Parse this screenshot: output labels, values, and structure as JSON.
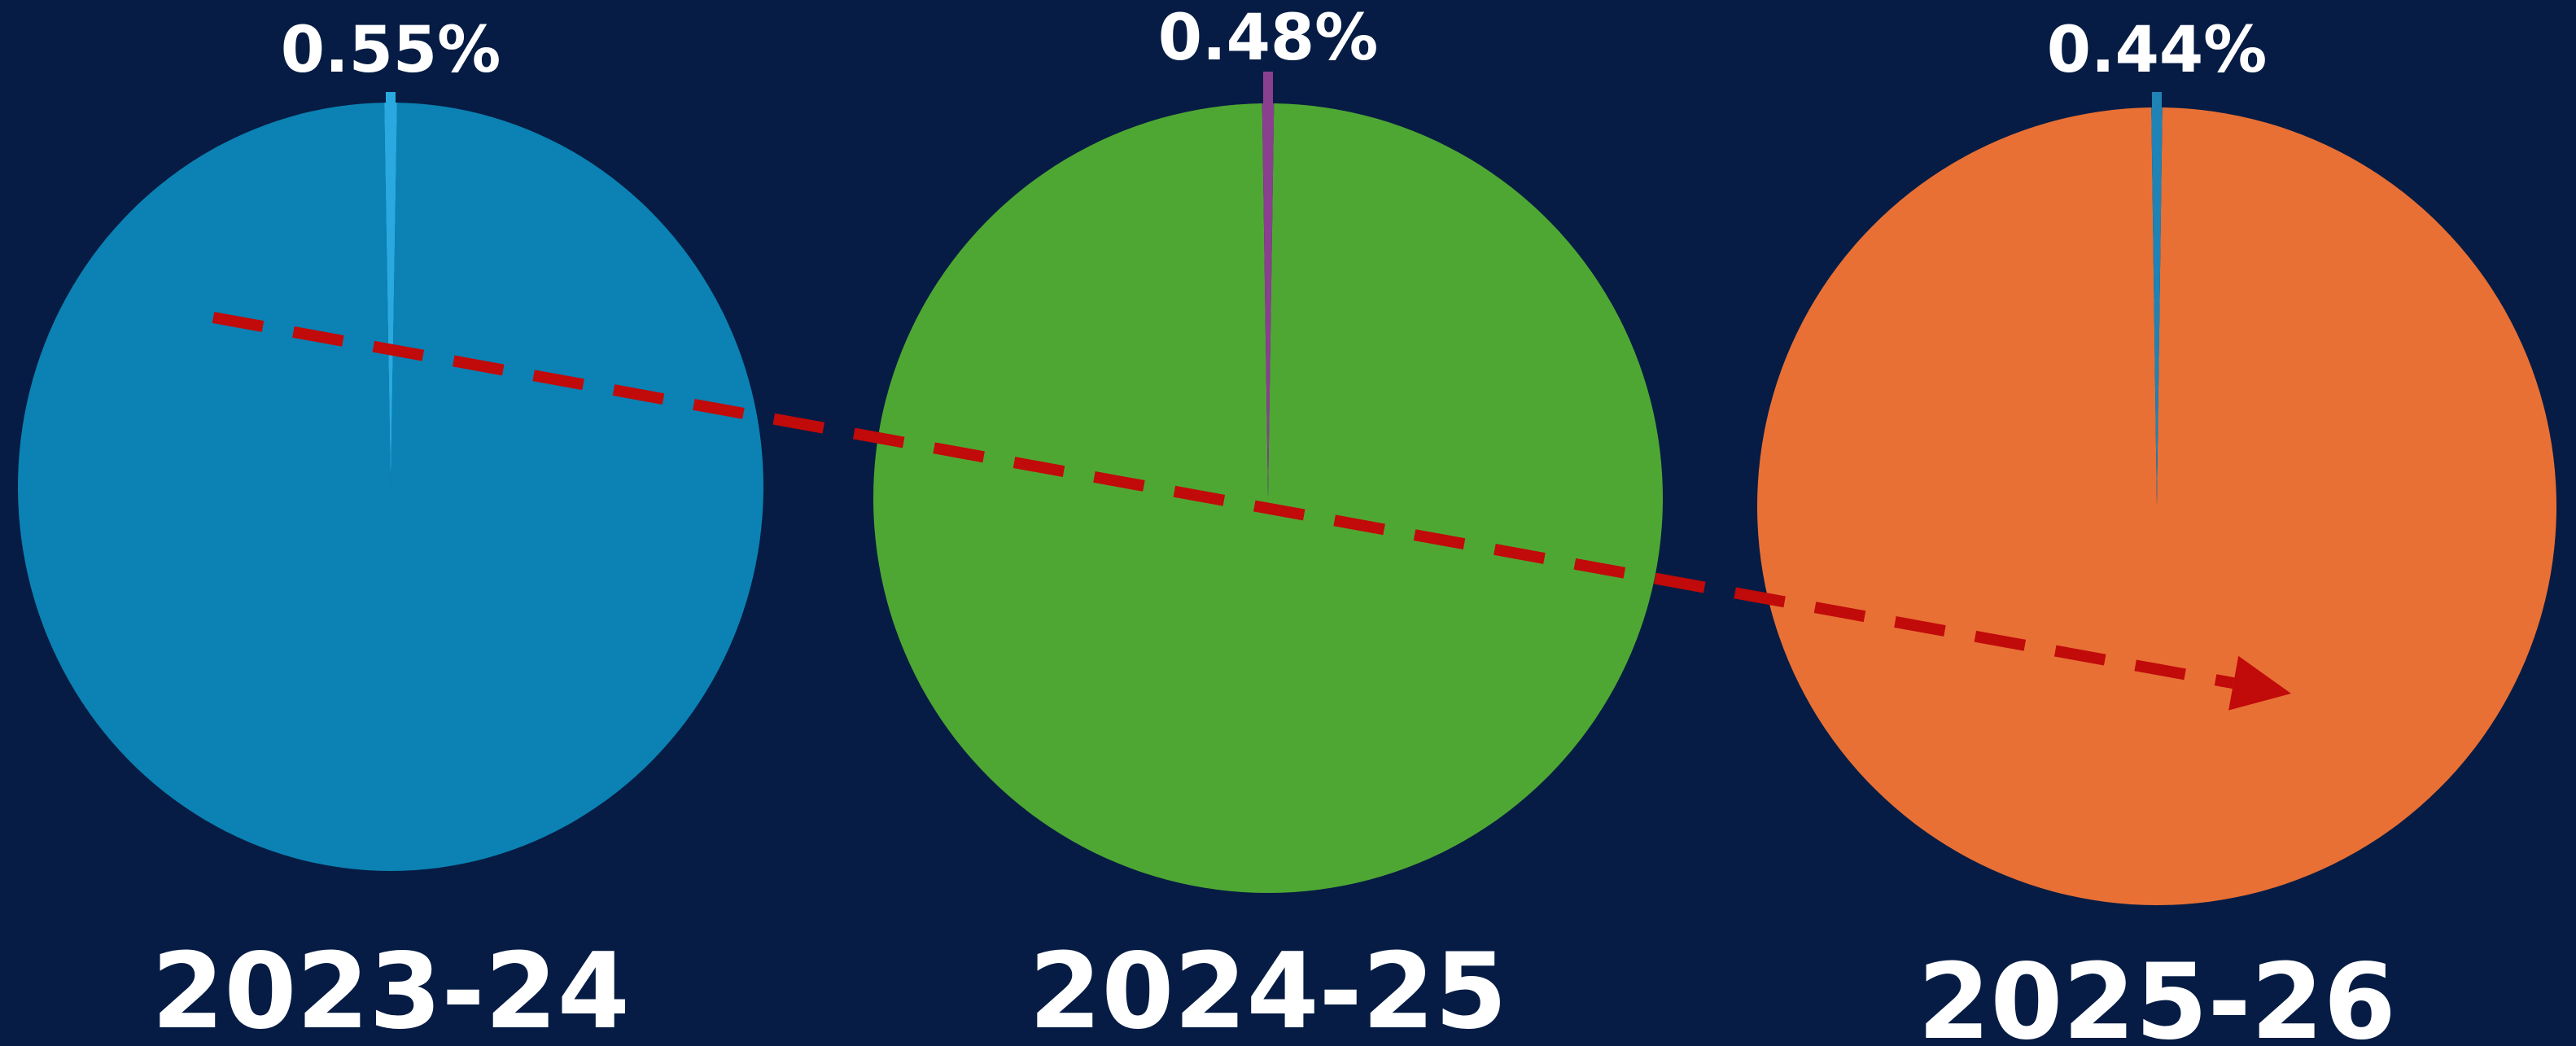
{
  "chart_data": [
    {
      "type": "pie",
      "category": "2023-24",
      "slices": [
        {
          "label": "0.55%",
          "value": 0.55,
          "color": "#29a9e0"
        },
        {
          "value": 99.45,
          "color": "#0b82b3"
        }
      ]
    },
    {
      "type": "pie",
      "category": "2024-25",
      "slices": [
        {
          "label": "0.48%",
          "value": 0.48,
          "color": "#8a3f8f"
        },
        {
          "value": 99.52,
          "color": "#4fa733"
        }
      ]
    },
    {
      "type": "pie",
      "category": "2025-26",
      "slices": [
        {
          "label": "0.44%",
          "value": 0.44,
          "color": "#1f83b5"
        },
        {
          "value": 99.56,
          "color": "#e87035"
        }
      ]
    }
  ],
  "trend_arrow": {
    "style": "dashed",
    "direction": "down-right",
    "color": "#c10a0a"
  },
  "background_color": "#061c44"
}
